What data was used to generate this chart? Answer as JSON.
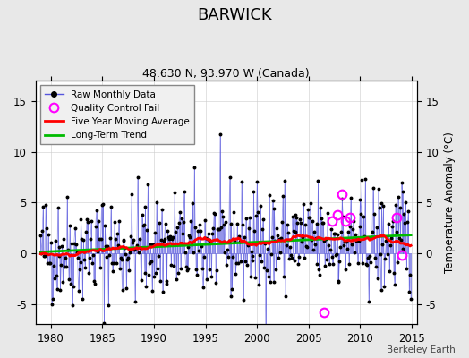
{
  "title": "BARWICK",
  "subtitle": "48.630 N, 93.970 W (Canada)",
  "ylabel": "Temperature Anomaly (°C)",
  "xlabel_years": [
    1980,
    1985,
    1990,
    1995,
    2000,
    2005,
    2010,
    2015
  ],
  "yticks_left": [
    -5,
    0,
    5,
    10,
    15
  ],
  "yticks_right": [
    -5,
    0,
    5,
    10,
    15
  ],
  "xlim": [
    1978.5,
    2015.5
  ],
  "ylim": [
    -7,
    17
  ],
  "bg_color": "#e8e8e8",
  "plot_bg_color": "#ffffff",
  "line_color": "#4444cc",
  "dot_color": "#000000",
  "ma_color": "#ff0000",
  "trend_color": "#00bb00",
  "qc_color": "#ff00ff",
  "watermark": "Berkeley Earth",
  "seed": 12345
}
